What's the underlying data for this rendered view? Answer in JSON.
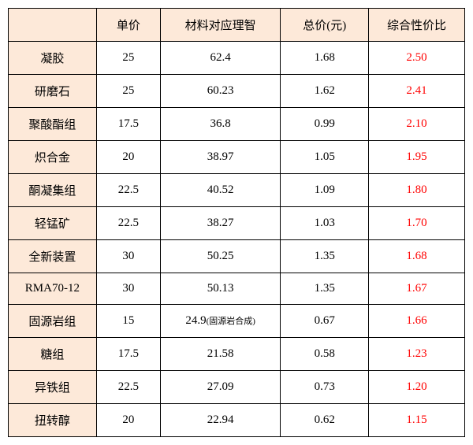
{
  "table": {
    "columns": [
      "",
      "单价",
      "材料对应理智",
      "总价(元)",
      "综合性价比"
    ],
    "col_classes": [
      "col-blank",
      "col-price",
      "col-mat",
      "col-total",
      "col-ratio"
    ],
    "rows": [
      {
        "label": "凝胶",
        "price": "25",
        "material": "62.4",
        "total": "1.68",
        "ratio": "2.50"
      },
      {
        "label": "研磨石",
        "price": "25",
        "material": "60.23",
        "total": "1.62",
        "ratio": "2.41"
      },
      {
        "label": "聚酸酯组",
        "price": "17.5",
        "material": "36.8",
        "total": "0.99",
        "ratio": "2.10"
      },
      {
        "label": "炽合金",
        "price": "20",
        "material": "38.97",
        "total": "1.05",
        "ratio": "1.95"
      },
      {
        "label": "酮凝集组",
        "price": "22.5",
        "material": "40.52",
        "total": "1.09",
        "ratio": "1.80"
      },
      {
        "label": "轻锰矿",
        "price": "22.5",
        "material": "38.27",
        "total": "1.03",
        "ratio": "1.70"
      },
      {
        "label": "全新装置",
        "price": "30",
        "material": "50.25",
        "total": "1.35",
        "ratio": "1.68"
      },
      {
        "label": "RMA70-12",
        "price": "30",
        "material": "50.13",
        "total": "1.35",
        "ratio": "1.67"
      },
      {
        "label": "固源岩组",
        "price": "15",
        "material": "24.9",
        "material_note": "(固源岩合成)",
        "total": "0.67",
        "ratio": "1.66"
      },
      {
        "label": "糖组",
        "price": "17.5",
        "material": "21.58",
        "total": "0.58",
        "ratio": "1.23"
      },
      {
        "label": "异铁组",
        "price": "22.5",
        "material": "27.09",
        "total": "0.73",
        "ratio": "1.20"
      },
      {
        "label": "扭转醇",
        "price": "20",
        "material": "22.94",
        "total": "0.62",
        "ratio": "1.15"
      }
    ],
    "header_bg": "#fde9d9",
    "border_color": "#000000",
    "ratio_color": "#ff0000",
    "text_color": "#000000",
    "background_color": "#ffffff",
    "font_family": "SimSun",
    "font_size": 15
  }
}
